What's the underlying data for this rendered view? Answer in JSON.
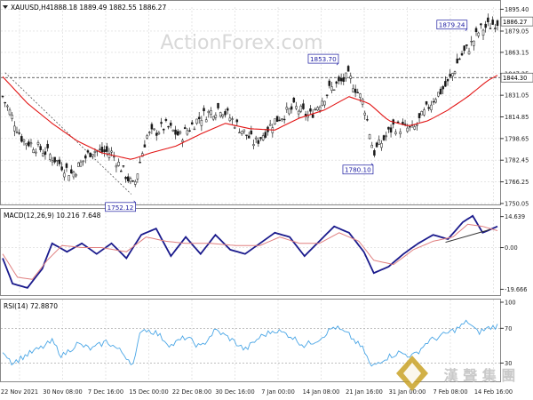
{
  "symbol_label": "XAUUSD,H4",
  "ohlc_label": "1888.18 1889.49 1882.55 1886.27",
  "watermark": "ActionForex.com",
  "logo_text": "漢 聲 集 團",
  "colors": {
    "candle": "#1a1a1a",
    "ma": "#e21414",
    "macd": "#1a1a8c",
    "signal": "#e08080",
    "rsi": "#4aa6e6",
    "trend": "#333333",
    "annot": "#1a1aa0",
    "grid": "#d6d6d6",
    "watermark": "#d8d8d8"
  },
  "chart_data": [
    {
      "type": "candlestick",
      "panel": "price",
      "ylim": [
        1750,
        1897
      ],
      "y_ticks": [
        "1895.40",
        "1879.05",
        "1863.15",
        "1847.25",
        "1831.05",
        "1814.85",
        "1798.65",
        "1782.45",
        "1766.25",
        "1750.05"
      ],
      "y_tick_values": [
        1895.4,
        1879.05,
        1863.15,
        1847.25,
        1831.05,
        1814.85,
        1798.65,
        1782.45,
        1766.25,
        1750.05
      ],
      "last_price": {
        "label": "1886.27",
        "value": 1886.27
      },
      "horizontal_level": {
        "label": "1844.30",
        "value": 1844.3
      },
      "annotations": [
        {
          "label": "1853.70",
          "value": 1853.7,
          "t": 0.675
        },
        {
          "label": "1752.12",
          "value": 1752.12,
          "t": 0.265
        },
        {
          "label": "1780.10",
          "value": 1780.1,
          "t": 0.745
        },
        {
          "label": "1879.24",
          "value": 1879.24,
          "t": 0.935
        }
      ],
      "close_anchors": [
        [
          0,
          1830
        ],
        [
          0.04,
          1798
        ],
        [
          0.09,
          1788
        ],
        [
          0.14,
          1772
        ],
        [
          0.18,
          1790
        ],
        [
          0.22,
          1788
        ],
        [
          0.265,
          1762
        ],
        [
          0.29,
          1800
        ],
        [
          0.33,
          1808
        ],
        [
          0.36,
          1800
        ],
        [
          0.4,
          1815
        ],
        [
          0.44,
          1822
        ],
        [
          0.47,
          1810
        ],
        [
          0.51,
          1795
        ],
        [
          0.55,
          1812
        ],
        [
          0.59,
          1822
        ],
        [
          0.62,
          1815
        ],
        [
          0.66,
          1835
        ],
        [
          0.7,
          1845
        ],
        [
          0.73,
          1825
        ],
        [
          0.75,
          1788
        ],
        [
          0.79,
          1808
        ],
        [
          0.83,
          1805
        ],
        [
          0.87,
          1828
        ],
        [
          0.9,
          1840
        ],
        [
          0.925,
          1860
        ],
        [
          0.945,
          1868
        ],
        [
          0.965,
          1880
        ],
        [
          1,
          1886
        ]
      ],
      "ma_anchors": [
        [
          0,
          1845
        ],
        [
          0.05,
          1825
        ],
        [
          0.1,
          1810
        ],
        [
          0.15,
          1797
        ],
        [
          0.2,
          1788
        ],
        [
          0.26,
          1783
        ],
        [
          0.3,
          1788
        ],
        [
          0.35,
          1793
        ],
        [
          0.4,
          1802
        ],
        [
          0.45,
          1810
        ],
        [
          0.5,
          1806
        ],
        [
          0.55,
          1805
        ],
        [
          0.6,
          1814
        ],
        [
          0.65,
          1820
        ],
        [
          0.7,
          1830
        ],
        [
          0.74,
          1825
        ],
        [
          0.78,
          1812
        ],
        [
          0.82,
          1808
        ],
        [
          0.86,
          1812
        ],
        [
          0.9,
          1820
        ],
        [
          0.94,
          1830
        ],
        [
          0.98,
          1842
        ],
        [
          1,
          1846
        ]
      ]
    },
    {
      "type": "line",
      "panel": "macd",
      "label": "MACD(12,26,9) 10.216 7.648",
      "ylim": [
        -22,
        17
      ],
      "y_ticks": [
        "14.639",
        "0.00",
        "-19.666"
      ],
      "y_tick_values": [
        14.639,
        0,
        -19.666
      ],
      "series": [
        {
          "name": "MACD",
          "anchors": [
            [
              0,
              -5
            ],
            [
              0.02,
              -17
            ],
            [
              0.05,
              -19
            ],
            [
              0.08,
              -10
            ],
            [
              0.1,
              2
            ],
            [
              0.13,
              -2
            ],
            [
              0.16,
              2
            ],
            [
              0.19,
              -3
            ],
            [
              0.22,
              2
            ],
            [
              0.25,
              -5
            ],
            [
              0.28,
              6
            ],
            [
              0.31,
              9
            ],
            [
              0.34,
              -4
            ],
            [
              0.37,
              5
            ],
            [
              0.4,
              -3
            ],
            [
              0.43,
              6
            ],
            [
              0.46,
              -1
            ],
            [
              0.49,
              -3
            ],
            [
              0.52,
              2
            ],
            [
              0.55,
              7
            ],
            [
              0.58,
              5
            ],
            [
              0.61,
              -4
            ],
            [
              0.64,
              3
            ],
            [
              0.67,
              10
            ],
            [
              0.7,
              7
            ],
            [
              0.73,
              -2
            ],
            [
              0.75,
              -12
            ],
            [
              0.78,
              -9
            ],
            [
              0.81,
              -3
            ],
            [
              0.84,
              2
            ],
            [
              0.87,
              6
            ],
            [
              0.9,
              4
            ],
            [
              0.93,
              12
            ],
            [
              0.95,
              15
            ],
            [
              0.97,
              7
            ],
            [
              1,
              10
            ]
          ]
        },
        {
          "name": "Signal",
          "anchors": [
            [
              0,
              -3
            ],
            [
              0.03,
              -14
            ],
            [
              0.06,
              -15
            ],
            [
              0.09,
              -6
            ],
            [
              0.12,
              1
            ],
            [
              0.16,
              0
            ],
            [
              0.2,
              0
            ],
            [
              0.25,
              -2
            ],
            [
              0.29,
              5
            ],
            [
              0.33,
              3
            ],
            [
              0.37,
              2
            ],
            [
              0.42,
              2
            ],
            [
              0.47,
              1
            ],
            [
              0.52,
              1
            ],
            [
              0.56,
              5
            ],
            [
              0.6,
              2
            ],
            [
              0.64,
              2
            ],
            [
              0.68,
              7
            ],
            [
              0.72,
              3
            ],
            [
              0.75,
              -6
            ],
            [
              0.79,
              -8
            ],
            [
              0.83,
              -1
            ],
            [
              0.87,
              3
            ],
            [
              0.91,
              5
            ],
            [
              0.94,
              11
            ],
            [
              0.97,
              10
            ],
            [
              1,
              8
            ]
          ]
        }
      ],
      "trendline": [
        [
          0.895,
          2.5
        ],
        [
          0.985,
          8.5
        ]
      ]
    },
    {
      "type": "line",
      "panel": "rsi",
      "label": "RSI(14) 72.8870",
      "ylim": [
        10,
        100
      ],
      "y_ticks": [
        "100",
        "70",
        "30"
      ],
      "y_tick_values": [
        100,
        70,
        30
      ],
      "reference_levels": [
        70,
        30
      ],
      "anchors": [
        [
          0,
          45
        ],
        [
          0.02,
          30
        ],
        [
          0.05,
          40
        ],
        [
          0.08,
          48
        ],
        [
          0.1,
          55
        ],
        [
          0.12,
          38
        ],
        [
          0.15,
          52
        ],
        [
          0.18,
          46
        ],
        [
          0.21,
          55
        ],
        [
          0.24,
          43
        ],
        [
          0.265,
          28
        ],
        [
          0.28,
          70
        ],
        [
          0.31,
          65
        ],
        [
          0.34,
          50
        ],
        [
          0.37,
          60
        ],
        [
          0.4,
          48
        ],
        [
          0.43,
          68
        ],
        [
          0.46,
          58
        ],
        [
          0.49,
          45
        ],
        [
          0.52,
          60
        ],
        [
          0.55,
          68
        ],
        [
          0.58,
          62
        ],
        [
          0.61,
          50
        ],
        [
          0.64,
          58
        ],
        [
          0.67,
          72
        ],
        [
          0.7,
          62
        ],
        [
          0.73,
          45
        ],
        [
          0.745,
          25
        ],
        [
          0.77,
          35
        ],
        [
          0.8,
          42
        ],
        [
          0.83,
          38
        ],
        [
          0.86,
          55
        ],
        [
          0.89,
          62
        ],
        [
          0.92,
          70
        ],
        [
          0.94,
          78
        ],
        [
          0.96,
          65
        ],
        [
          0.98,
          70
        ],
        [
          1,
          73
        ]
      ]
    }
  ],
  "x_axis_labels": [
    "22 Nov 2021",
    "30 Nov 08:00",
    "7 Dec 16:00",
    "15 Dec 00:00",
    "22 Dec 08:00",
    "30 Dec 16:00",
    "7 Jan 00:00",
    "14 Jan 08:00",
    "21 Jan 16:00",
    "31 Jan 00:00",
    "7 Feb 08:00",
    "14 Feb 16:00"
  ]
}
